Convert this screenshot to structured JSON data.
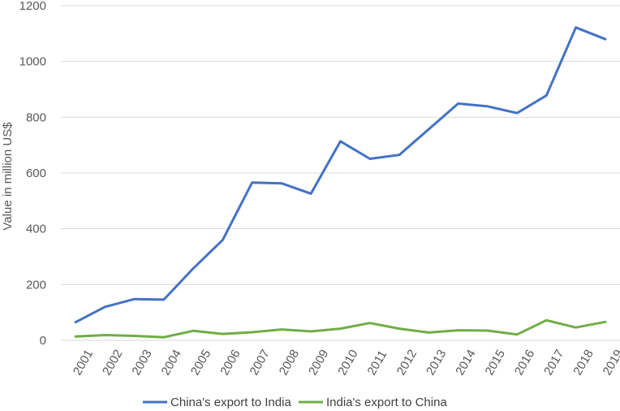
{
  "chart_data": {
    "type": "line",
    "x": [
      "2001",
      "2002",
      "2003",
      "2004",
      "2005",
      "2006",
      "2007",
      "2008",
      "2009",
      "2010",
      "2011",
      "2012",
      "2013",
      "2014",
      "2015",
      "2016",
      "2017",
      "2018",
      "2019"
    ],
    "series": [
      {
        "name": "China's export to India",
        "color": "#4472C4",
        "values": [
          65,
          120,
          148,
          146,
          258,
          360,
          566,
          563,
          526,
          714,
          651,
          665,
          757,
          849,
          839,
          815,
          878,
          1122,
          1080
        ]
      },
      {
        "name": "India's export to China",
        "color": "#70AD47",
        "values": [
          14,
          19,
          16,
          11,
          34,
          23,
          29,
          39,
          32,
          42,
          62,
          42,
          28,
          36,
          35,
          21,
          72,
          46,
          66
        ]
      }
    ],
    "ylabel": "Value in million US$",
    "xlabel": "",
    "ylim": [
      0,
      1200
    ],
    "yticks": [
      0,
      200,
      400,
      600,
      800,
      1000,
      1200
    ],
    "grid": true,
    "legend": "bottom"
  }
}
